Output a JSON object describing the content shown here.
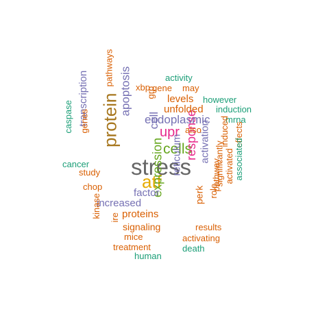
{
  "colors": {
    "teal": "#1b9e77",
    "orange": "#d95f02",
    "purple": "#7570b3",
    "magenta": "#e7298a",
    "green": "#66a61e",
    "gold": "#e6ab02",
    "brown": "#a6761d",
    "gray": "#666666"
  },
  "words": [
    {
      "text": "stress",
      "color": "gray"
    },
    {
      "text": "protein",
      "color": "brown"
    },
    {
      "text": "atf",
      "color": "gold"
    },
    {
      "text": "upr",
      "color": "magenta"
    },
    {
      "text": "cells",
      "color": "green"
    },
    {
      "text": "expression",
      "color": "green"
    },
    {
      "text": "response",
      "color": "magenta"
    },
    {
      "text": "endoplasmic",
      "color": "purple"
    },
    {
      "text": "apoptosis",
      "color": "purple"
    },
    {
      "text": "cell",
      "color": "purple"
    },
    {
      "text": "reticulum",
      "color": "purple"
    },
    {
      "text": "activation",
      "color": "purple"
    },
    {
      "text": "transcription",
      "color": "purple"
    },
    {
      "text": "increased",
      "color": "purple"
    },
    {
      "text": "factor",
      "color": "purple"
    },
    {
      "text": "unfolded",
      "color": "orange"
    },
    {
      "text": "levels",
      "color": "orange"
    },
    {
      "text": "proteins",
      "color": "orange"
    },
    {
      "text": "signaling",
      "color": "orange"
    },
    {
      "text": "perk",
      "color": "orange"
    },
    {
      "text": "grp",
      "color": "orange"
    },
    {
      "text": "activity",
      "color": "teal"
    },
    {
      "text": "xbp",
      "color": "orange"
    },
    {
      "text": "gene",
      "color": "orange"
    },
    {
      "text": "may",
      "color": "orange"
    },
    {
      "text": "however",
      "color": "teal"
    },
    {
      "text": "induction",
      "color": "teal"
    },
    {
      "text": "mrna",
      "color": "teal"
    },
    {
      "text": "also",
      "color": "orange"
    },
    {
      "text": "pathways",
      "color": "orange"
    },
    {
      "text": "caspase",
      "color": "teal"
    },
    {
      "text": "genes",
      "color": "orange"
    },
    {
      "text": "cancer",
      "color": "teal"
    },
    {
      "text": "study",
      "color": "orange"
    },
    {
      "text": "chop",
      "color": "orange"
    },
    {
      "text": "kinase",
      "color": "orange"
    },
    {
      "text": "ire",
      "color": "orange"
    },
    {
      "text": "mice",
      "color": "orange"
    },
    {
      "text": "treatment",
      "color": "orange"
    },
    {
      "text": "human",
      "color": "teal"
    },
    {
      "text": "death",
      "color": "teal"
    },
    {
      "text": "activating",
      "color": "orange"
    },
    {
      "text": "results",
      "color": "orange"
    },
    {
      "text": "role",
      "color": "orange"
    },
    {
      "text": "pathway",
      "color": "orange"
    },
    {
      "text": "induced",
      "color": "orange"
    },
    {
      "text": "significantly",
      "color": "orange"
    },
    {
      "text": "activated",
      "color": "orange"
    },
    {
      "text": "effects",
      "color": "orange"
    },
    {
      "text": "associated",
      "color": "teal"
    }
  ]
}
